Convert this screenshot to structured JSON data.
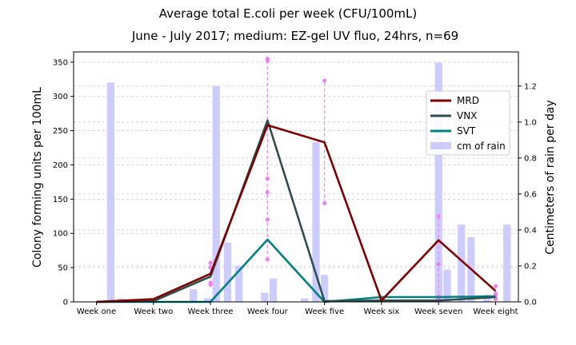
{
  "chart_data": {
    "type": "line",
    "title": "Average total E.coli per week (CFU/100mL)",
    "subtitle": "June - July 2017; medium: EZ-gel UV fluo, 24hrs, n=69",
    "ylabel": "Colony forming units per 100mL",
    "ylabel_right": "Centimeters of rain per day",
    "ylim": [
      0,
      365
    ],
    "ylim_right": [
      0,
      1.39
    ],
    "xlim": [
      -0.4,
      7.4
    ],
    "categories": [
      "Week one",
      "Week two",
      "Week three",
      "Week four",
      "Week five",
      "Week six",
      "Week seven",
      "Week eight"
    ],
    "yticks": [
      0,
      50,
      100,
      150,
      200,
      250,
      300,
      350
    ],
    "yticks_right": [
      "0.0",
      "0.2",
      "0.4",
      "0.6",
      "0.8",
      "1.0",
      "1.2"
    ],
    "grid": "horizontal dashed",
    "legend_position": "upper-right",
    "series": [
      {
        "name": "MRD",
        "color": "#800000",
        "values": [
          0,
          4,
          41,
          258,
          233,
          2,
          90,
          16
        ]
      },
      {
        "name": "VNX",
        "color": "#2f4f4f",
        "values": [
          0,
          1,
          37,
          265,
          1,
          2,
          2,
          7
        ]
      },
      {
        "name": "SVT",
        "color": "#008080",
        "values": [
          0,
          0,
          0,
          91,
          0,
          7,
          7,
          8
        ]
      }
    ],
    "individual_points_color": "#ee82ee",
    "individual_points": [
      {
        "x": 2,
        "values": [
          25,
          28,
          50,
          57
        ]
      },
      {
        "x": 3,
        "values": [
          62,
          120,
          160,
          180,
          352,
          355
        ]
      },
      {
        "x": 4,
        "values": [
          144,
          323
        ]
      },
      {
        "x": 5,
        "values": [
          4,
          6
        ]
      },
      {
        "x": 6,
        "values": [
          4,
          8,
          55,
          125
        ]
      },
      {
        "x": 7,
        "values": [
          4,
          6,
          10,
          12,
          23
        ]
      }
    ],
    "rain": {
      "name": "cm of rain",
      "color": "#ccccff",
      "x": [
        0.25,
        0.43,
        1.7,
        1.95,
        2.1,
        2.3,
        2.5,
        2.95,
        3.1,
        3.65,
        3.85,
        4.0,
        6.0,
        6.15,
        6.4,
        6.57,
        6.85,
        7.2
      ],
      "values": [
        1.22,
        0.02,
        0.07,
        0.02,
        1.2,
        0.33,
        0.2,
        0.05,
        0.13,
        0.02,
        0.89,
        0.15,
        1.33,
        0.18,
        0.43,
        0.36,
        0.04,
        0.43
      ]
    }
  }
}
